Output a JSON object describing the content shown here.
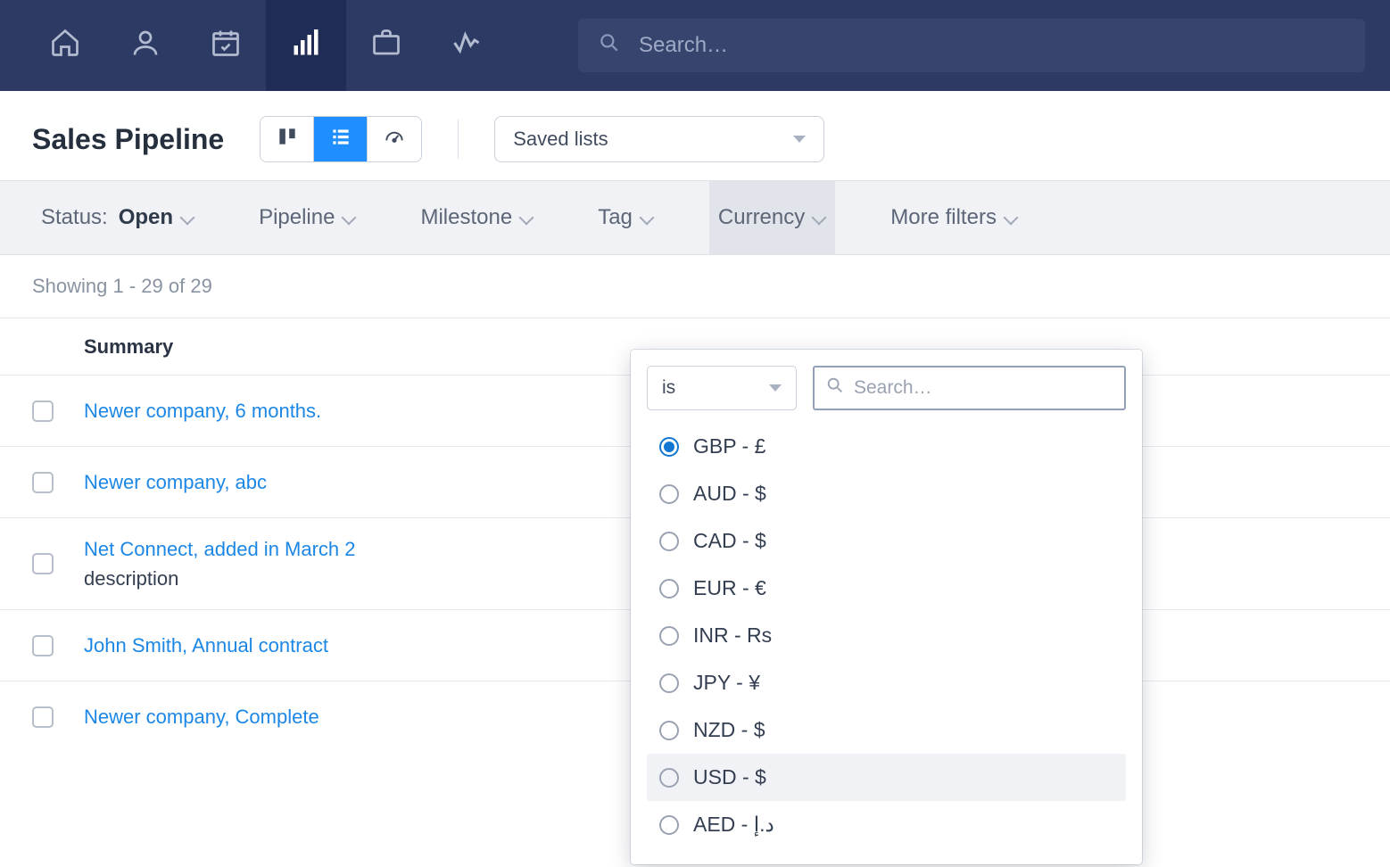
{
  "colors": {
    "navbar_bg": "#2c3a64",
    "navbar_active_bg": "#1f2c55",
    "accent": "#1f8fff",
    "link": "#1c87e5",
    "filter_bg": "#f0f2f6",
    "border": "#e5e9ef"
  },
  "topbar": {
    "search_placeholder": "Search…"
  },
  "page": {
    "title": "Sales Pipeline",
    "saved_lists_label": "Saved lists"
  },
  "filters": {
    "status_label": "Status:",
    "status_value": "Open",
    "pipeline_label": "Pipeline",
    "milestone_label": "Milestone",
    "tag_label": "Tag",
    "currency_label": "Currency",
    "more_label": "More filters"
  },
  "showing_text": "Showing 1 - 29 of 29",
  "table": {
    "header_summary": "Summary"
  },
  "rows": [
    {
      "title": "Newer company, 6 months.",
      "desc": ""
    },
    {
      "title": "Newer company, abc",
      "desc": ""
    },
    {
      "title": "Net Connect, added in March 2",
      "desc": "description"
    },
    {
      "title": "John Smith, Annual contract",
      "desc": ""
    },
    {
      "title": "Newer company, Complete",
      "desc": ""
    }
  ],
  "currency_dropdown": {
    "operator": "is",
    "search_placeholder": "Search…",
    "options": [
      {
        "label": "GBP - £",
        "selected": true,
        "hover": false
      },
      {
        "label": "AUD - $",
        "selected": false,
        "hover": false
      },
      {
        "label": "CAD - $",
        "selected": false,
        "hover": false
      },
      {
        "label": "EUR - €",
        "selected": false,
        "hover": false
      },
      {
        "label": "INR - Rs",
        "selected": false,
        "hover": false
      },
      {
        "label": "JPY - ¥",
        "selected": false,
        "hover": false
      },
      {
        "label": "NZD - $",
        "selected": false,
        "hover": false
      },
      {
        "label": "USD - $",
        "selected": false,
        "hover": true
      },
      {
        "label": "AED - د.إ",
        "selected": false,
        "hover": false
      }
    ]
  }
}
